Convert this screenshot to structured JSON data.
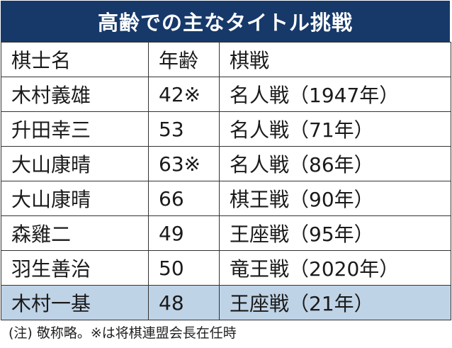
{
  "title": "高齢での主なタイトル挑戦",
  "headers": [
    "棋士名",
    "年齢",
    "棋戦"
  ],
  "rows": [
    {
      "name": "木村義雄",
      "age": "42※",
      "match": "名人戦（1947年）"
    },
    {
      "name": "升田幸三",
      "age": "53",
      "match": "名人戦（71年）"
    },
    {
      "name": "大山康晴",
      "age": "63※",
      "match": "名人戦（86年）"
    },
    {
      "name": "大山康晴",
      "age": "66",
      "match": "棋王戦（90年）"
    },
    {
      "name": "森雞二",
      "age": "49",
      "match": "王座戦（95年）"
    },
    {
      "name": "羽生善治",
      "age": "50",
      "match": "竜王戦（2020年）"
    },
    {
      "name": "木村一基",
      "age": "48",
      "match": "王座戦（21年）",
      "highlighted": true
    }
  ],
  "note": "(注) 敬称略。※は将棋連盟会長在任時",
  "colors": {
    "title_bg": "#16396a",
    "highlight_row": "#bfd3e6",
    "border": "#333333"
  }
}
